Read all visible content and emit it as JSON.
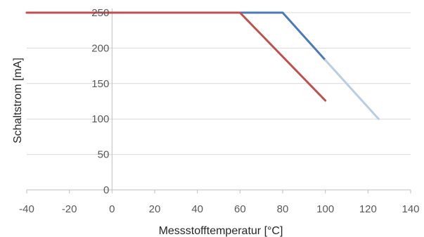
{
  "chart_data": {
    "type": "line",
    "title": "",
    "xlabel": "Messstofftemperatur [°C]",
    "ylabel": "Schaltstrom [mA]",
    "xlim": [
      -40,
      140
    ],
    "ylim": [
      0,
      250
    ],
    "x_ticks": [
      -40,
      -20,
      0,
      20,
      40,
      60,
      80,
      100,
      120,
      140
    ],
    "y_ticks": [
      0,
      50,
      100,
      150,
      200,
      250
    ],
    "x_tick_labels": [
      "-40",
      "-20",
      "0",
      "20",
      "40",
      "60",
      "80",
      "100",
      "120",
      "140"
    ],
    "y_tick_labels": [
      "0",
      "50",
      "100",
      "150",
      "200",
      "250"
    ],
    "grid": {
      "horizontal": true,
      "vertical": false
    },
    "legend": "none",
    "series": [
      {
        "color": "#4a7ab9",
        "points": [
          [
            -40,
            250
          ],
          [
            80,
            250
          ],
          [
            100,
            183
          ]
        ]
      },
      {
        "color": "#b9cde4",
        "points": [
          [
            100,
            183
          ],
          [
            125,
            100
          ]
        ]
      },
      {
        "color": "#c0504d",
        "points": [
          [
            -40,
            250
          ],
          [
            60,
            250
          ],
          [
            100,
            126
          ]
        ]
      }
    ]
  }
}
